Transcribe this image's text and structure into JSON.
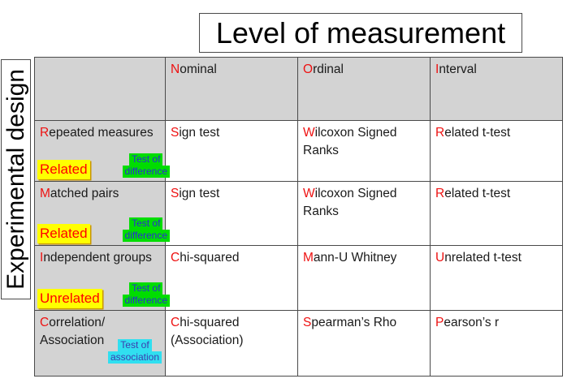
{
  "title": "Level of measurement",
  "side_label": "Experimental design",
  "colors": {
    "accent_red": "#ee1111",
    "highlight_yellow": "#ffff00",
    "tag_text_red": "#ff0000",
    "badge_green": "#00dd00",
    "badge_green_text": "#2b2bd4",
    "badge_cyan": "#30dff0",
    "badge_cyan_text": "#3c3cae",
    "header_grey": "#d3d3d3",
    "table_border": "#4a4a4a"
  },
  "grid": {
    "columns": [
      {
        "first": "N",
        "rest": "ominal"
      },
      {
        "first": "O",
        "rest": "rdinal"
      },
      {
        "first": "I",
        "rest": "nterval"
      }
    ],
    "rows": [
      {
        "label": {
          "first": "R",
          "rest": "epeated measures"
        },
        "tag": "Related",
        "badge": {
          "line1": "Test of",
          "line2": "difference"
        },
        "cells": [
          {
            "first": "S",
            "rest": "ign test"
          },
          {
            "first": "W",
            "rest": "ilcoxon Signed\nRanks"
          },
          {
            "first": "R",
            "rest": "elated t-test"
          }
        ]
      },
      {
        "label": {
          "first": "M",
          "rest": "atched pairs"
        },
        "tag": "Related",
        "badge": {
          "line1": "Test of",
          "line2": "difference"
        },
        "cells": [
          {
            "first": "S",
            "rest": "ign test"
          },
          {
            "first": "W",
            "rest": "ilcoxon Signed\nRanks"
          },
          {
            "first": "R",
            "rest": "elated t-test"
          }
        ]
      },
      {
        "label": {
          "first": "I",
          "rest": "ndependent groups"
        },
        "tag": "Unrelated",
        "badge": {
          "line1": "Test of",
          "line2": "difference"
        },
        "cells": [
          {
            "first": "C",
            "rest": "hi-squared"
          },
          {
            "first": "M",
            "rest": "ann-U Whitney"
          },
          {
            "first": "U",
            "rest": "nrelated t-test"
          }
        ]
      },
      {
        "label": {
          "first": "C",
          "rest": "orrelation/\nAssociation"
        },
        "badge": {
          "line1": "Test of",
          "line2": "association"
        },
        "cells": [
          {
            "first": "C",
            "rest": "hi-squared\n(Association)"
          },
          {
            "first": "S",
            "rest": "pearman’s Rho"
          },
          {
            "first": "P",
            "rest": "earson’s r"
          }
        ]
      }
    ]
  }
}
